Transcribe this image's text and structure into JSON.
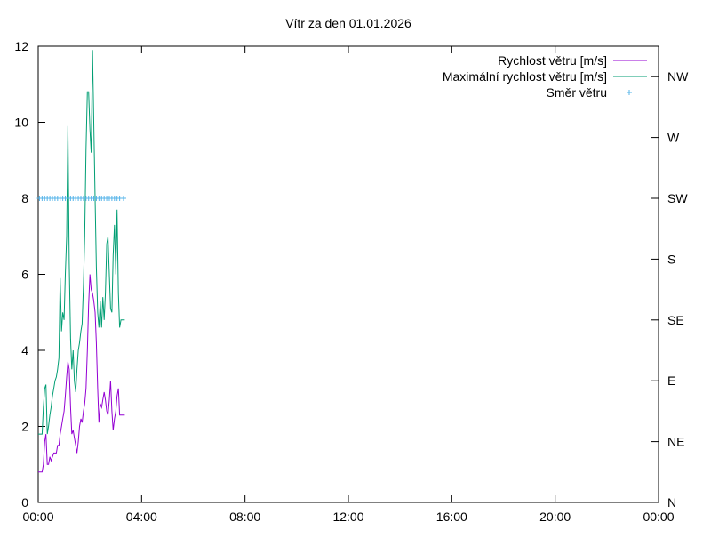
{
  "chart_data": {
    "type": "line",
    "title": "Vítr za den 01.01.2026",
    "xlabel": "",
    "ylabel": "",
    "x_ticks": [
      "00:00",
      "04:00",
      "08:00",
      "12:00",
      "16:00",
      "20:00",
      "00:00"
    ],
    "xlim_hours": [
      0,
      24
    ],
    "ylim": [
      0,
      12
    ],
    "y_ticks": [
      0,
      2,
      4,
      6,
      8,
      10,
      12
    ],
    "y2_ticks": [
      "N",
      "NE",
      "E",
      "SE",
      "S",
      "SW",
      "W",
      "NW"
    ],
    "y2lim_index": [
      0,
      7.5
    ],
    "grid": false,
    "legend_position": "top-right",
    "series": [
      {
        "name": "Rychlost větru [m/s]",
        "color": "#9400d3",
        "style": "line",
        "x_hours": [
          0.0,
          0.05,
          0.1,
          0.15,
          0.2,
          0.25,
          0.3,
          0.35,
          0.4,
          0.45,
          0.5,
          0.55,
          0.6,
          0.65,
          0.7,
          0.75,
          0.8,
          0.85,
          0.9,
          0.95,
          1.0,
          1.05,
          1.1,
          1.15,
          1.2,
          1.25,
          1.3,
          1.35,
          1.4,
          1.45,
          1.5,
          1.55,
          1.6,
          1.65,
          1.7,
          1.75,
          1.8,
          1.85,
          1.9,
          1.95,
          2.0,
          2.05,
          2.1,
          2.15,
          2.2,
          2.25,
          2.3,
          2.35,
          2.4,
          2.45,
          2.5,
          2.55,
          2.6,
          2.65,
          2.7,
          2.75,
          2.8,
          2.85,
          2.9,
          2.95,
          3.0,
          3.05,
          3.1,
          3.15,
          3.2,
          3.25,
          3.3,
          3.35
        ],
        "values": [
          0.8,
          0.8,
          0.8,
          0.8,
          1.0,
          1.6,
          1.8,
          1.0,
          1.0,
          1.2,
          1.1,
          1.2,
          1.3,
          1.3,
          1.3,
          1.5,
          1.5,
          1.8,
          2.0,
          2.2,
          2.4,
          2.8,
          3.3,
          3.7,
          3.5,
          2.5,
          1.8,
          1.9,
          1.7,
          1.5,
          1.3,
          1.6,
          2.0,
          2.2,
          2.1,
          2.4,
          2.6,
          3.0,
          4.0,
          5.2,
          6.0,
          5.6,
          5.5,
          5.3,
          5.0,
          4.2,
          3.0,
          2.1,
          2.6,
          2.5,
          2.7,
          2.9,
          2.7,
          2.4,
          2.3,
          2.7,
          3.2,
          2.4,
          1.9,
          2.2,
          2.4,
          2.8,
          3.0,
          2.3,
          2.3,
          2.3,
          2.3,
          2.3
        ]
      },
      {
        "name": "Maximální rychlost větru [m/s]",
        "color": "#009e73",
        "style": "line",
        "x_hours": [
          0.0,
          0.05,
          0.1,
          0.15,
          0.2,
          0.25,
          0.3,
          0.35,
          0.4,
          0.45,
          0.5,
          0.55,
          0.6,
          0.65,
          0.7,
          0.75,
          0.8,
          0.85,
          0.9,
          0.95,
          1.0,
          1.05,
          1.1,
          1.15,
          1.2,
          1.25,
          1.3,
          1.35,
          1.4,
          1.45,
          1.5,
          1.55,
          1.6,
          1.65,
          1.7,
          1.75,
          1.8,
          1.85,
          1.9,
          1.95,
          2.0,
          2.05,
          2.1,
          2.15,
          2.2,
          2.25,
          2.3,
          2.35,
          2.4,
          2.45,
          2.5,
          2.55,
          2.6,
          2.65,
          2.7,
          2.75,
          2.8,
          2.85,
          2.9,
          2.95,
          3.0,
          3.05,
          3.1,
          3.15,
          3.2,
          3.25,
          3.3,
          3.35
        ],
        "values": [
          1.8,
          1.8,
          1.8,
          1.8,
          2.5,
          3.0,
          3.1,
          1.8,
          2.0,
          2.3,
          2.5,
          2.8,
          3.0,
          3.2,
          3.3,
          3.5,
          3.8,
          5.9,
          4.5,
          5.0,
          4.8,
          6.0,
          7.0,
          9.9,
          6.3,
          4.3,
          3.5,
          4.0,
          3.2,
          2.9,
          3.5,
          4.0,
          4.2,
          4.5,
          4.7,
          5.7,
          7.0,
          9.3,
          10.8,
          10.8,
          9.8,
          9.2,
          11.9,
          10.0,
          8.0,
          6.2,
          5.0,
          4.6,
          5.3,
          4.6,
          5.4,
          4.8,
          5.5,
          6.8,
          7.0,
          6.0,
          5.1,
          5.0,
          6.5,
          7.3,
          6.0,
          7.7,
          5.5,
          4.6,
          4.8,
          4.8,
          4.8,
          4.8
        ]
      },
      {
        "name": "Směr větru",
        "color": "#56b4e9",
        "style": "points",
        "axis": "right",
        "x_hours": [
          0.05,
          0.15,
          0.25,
          0.35,
          0.45,
          0.55,
          0.65,
          0.75,
          0.85,
          0.95,
          1.05,
          1.15,
          1.25,
          1.35,
          1.45,
          1.55,
          1.65,
          1.75,
          1.85,
          1.95,
          2.05,
          2.15,
          2.25,
          2.35,
          2.45,
          2.55,
          2.65,
          2.75,
          2.85,
          2.95,
          3.05,
          3.15,
          3.3
        ],
        "values": [
          "SW",
          "SW",
          "SW",
          "SW",
          "SW",
          "SW",
          "SW",
          "SW",
          "SW",
          "SW",
          "SW",
          "SW",
          "SW",
          "SW",
          "SW",
          "SW",
          "SW",
          "SW",
          "SW",
          "SW",
          "SW",
          "SW",
          "SW",
          "SW",
          "SW",
          "SW",
          "SW",
          "SW",
          "SW",
          "SW",
          "SW",
          "SW",
          "SW"
        ]
      }
    ]
  }
}
